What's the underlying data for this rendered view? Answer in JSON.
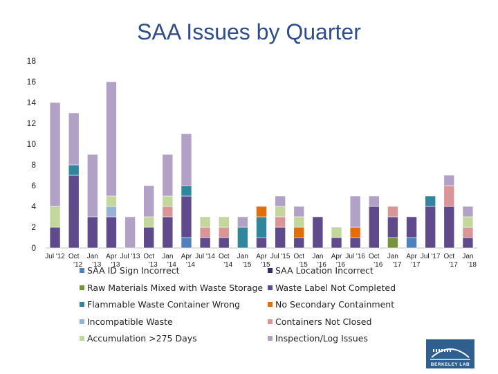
{
  "chart_data": {
    "type": "stacked-bar",
    "title": "SAA Issues by Quarter",
    "xlabel": "",
    "ylabel": "",
    "ylim": [
      0,
      18
    ],
    "yticks": [
      0,
      2,
      4,
      6,
      8,
      10,
      12,
      14,
      16,
      18
    ],
    "grid": false,
    "legend_position": "bottom",
    "categories": [
      "Jul '12",
      "Oct '12",
      "Jan '13",
      "Apr '13",
      "Jul '13",
      "Oct '13",
      "Jan '14",
      "Apr '14",
      "Jul '14",
      "Oct '14",
      "Jan '15",
      "Apr '15",
      "Jul '15",
      "Oct '15",
      "Jan '16",
      "Apr '16",
      "Jul '16",
      "Oct '16",
      "Jan '17",
      "Apr '17",
      "Jul '17",
      "Oct '17",
      "Jan '18"
    ],
    "category_lines": [
      [
        "Jul '12",
        ""
      ],
      [
        "Oct",
        "'12"
      ],
      [
        "Jan",
        "'13"
      ],
      [
        "Apr",
        "'13"
      ],
      [
        "Jul '13",
        ""
      ],
      [
        "Oct",
        "'13"
      ],
      [
        "Jan",
        "'14"
      ],
      [
        "Apr",
        "'14"
      ],
      [
        "Jul '14",
        ""
      ],
      [
        "Oct",
        "'14"
      ],
      [
        "Jan",
        "'15"
      ],
      [
        "Apr",
        "'15"
      ],
      [
        "Jul '15",
        ""
      ],
      [
        "Oct",
        "'15"
      ],
      [
        "Jan",
        "'16"
      ],
      [
        "Apr",
        "'16"
      ],
      [
        "Jul '16",
        ""
      ],
      [
        "Oct",
        "'16"
      ],
      [
        "Jan",
        "'17"
      ],
      [
        "Apr",
        "'17"
      ],
      [
        "Jul '17",
        ""
      ],
      [
        "Oct",
        "'17"
      ],
      [
        "Jan",
        "'18"
      ]
    ],
    "series": [
      {
        "name": "SAA ID Sign Incorrect",
        "color": "#4f81bd",
        "values": [
          0,
          0,
          0,
          0,
          0,
          0,
          0,
          1,
          0,
          0,
          0,
          0,
          0,
          0,
          0,
          0,
          0,
          0,
          0,
          1,
          0,
          0,
          0
        ]
      },
      {
        "name": "SAA Location Incorrect",
        "color": "#3c2a66",
        "values": [
          0,
          0,
          0,
          0,
          0,
          0,
          0,
          0,
          0,
          0,
          0,
          0,
          0,
          0,
          0,
          0,
          0,
          0,
          0,
          0,
          0,
          0,
          0
        ]
      },
      {
        "name": "Raw Materials Mixed with Waste Storage",
        "color": "#77933c",
        "values": [
          0,
          0,
          0,
          0,
          0,
          0,
          0,
          0,
          0,
          0,
          0,
          0,
          0,
          0,
          0,
          0,
          0,
          0,
          1,
          0,
          0,
          0,
          0
        ]
      },
      {
        "name": "Waste Label Not Completed",
        "color": "#5f4b8b",
        "values": [
          2,
          7,
          3,
          3,
          0,
          2,
          3,
          4,
          1,
          1,
          0,
          1,
          2,
          1,
          3,
          1,
          1,
          4,
          2,
          2,
          4,
          4,
          1
        ]
      },
      {
        "name": "Flammable Waste Container Wrong",
        "color": "#31859c",
        "values": [
          0,
          1,
          0,
          0,
          0,
          0,
          0,
          1,
          0,
          0,
          2,
          2,
          0,
          0,
          0,
          0,
          0,
          0,
          0,
          0,
          1,
          0,
          0
        ]
      },
      {
        "name": "No Secondary Containment",
        "color": "#e46c0a",
        "values": [
          0,
          0,
          0,
          0,
          0,
          0,
          0,
          0,
          0,
          0,
          0,
          1,
          0,
          1,
          0,
          0,
          1,
          0,
          0,
          0,
          0,
          0,
          0
        ]
      },
      {
        "name": "Incompatible Waste",
        "color": "#95b3d7",
        "values": [
          0,
          0,
          0,
          1,
          0,
          0,
          0,
          0,
          0,
          0,
          0,
          0,
          0,
          0,
          0,
          0,
          0,
          0,
          0,
          0,
          0,
          0,
          0
        ]
      },
      {
        "name": "Containers Not Closed",
        "color": "#d99694",
        "values": [
          0,
          0,
          0,
          0,
          0,
          0,
          1,
          0,
          1,
          1,
          0,
          0,
          1,
          0,
          0,
          0,
          0,
          0,
          1,
          0,
          0,
          2,
          1
        ]
      },
      {
        "name": "Accumulation >275 Days",
        "color": "#c3d69b",
        "values": [
          2,
          0,
          0,
          1,
          0,
          1,
          1,
          0,
          1,
          1,
          0,
          0,
          1,
          1,
          0,
          1,
          0,
          0,
          0,
          0,
          0,
          0,
          1
        ]
      },
      {
        "name": "Inspection/Log Issues",
        "color": "#b2a1c7",
        "values": [
          10,
          5,
          6,
          11,
          3,
          3,
          4,
          5,
          0,
          0,
          1,
          0,
          1,
          1,
          0,
          0,
          3,
          1,
          0,
          0,
          0,
          1,
          1
        ]
      }
    ],
    "legend_order": [
      "SAA ID Sign Incorrect",
      "SAA Location Incorrect",
      "Raw Materials Mixed with Waste Storage",
      "Waste Label Not Completed",
      "Flammable Waste Container Wrong",
      "No Secondary Containment",
      "Incompatible Waste",
      "Containers Not Closed",
      "Accumulation >275 Days",
      "Inspection/Log Issues"
    ]
  },
  "logo": {
    "text": "BERKELEY LAB"
  }
}
